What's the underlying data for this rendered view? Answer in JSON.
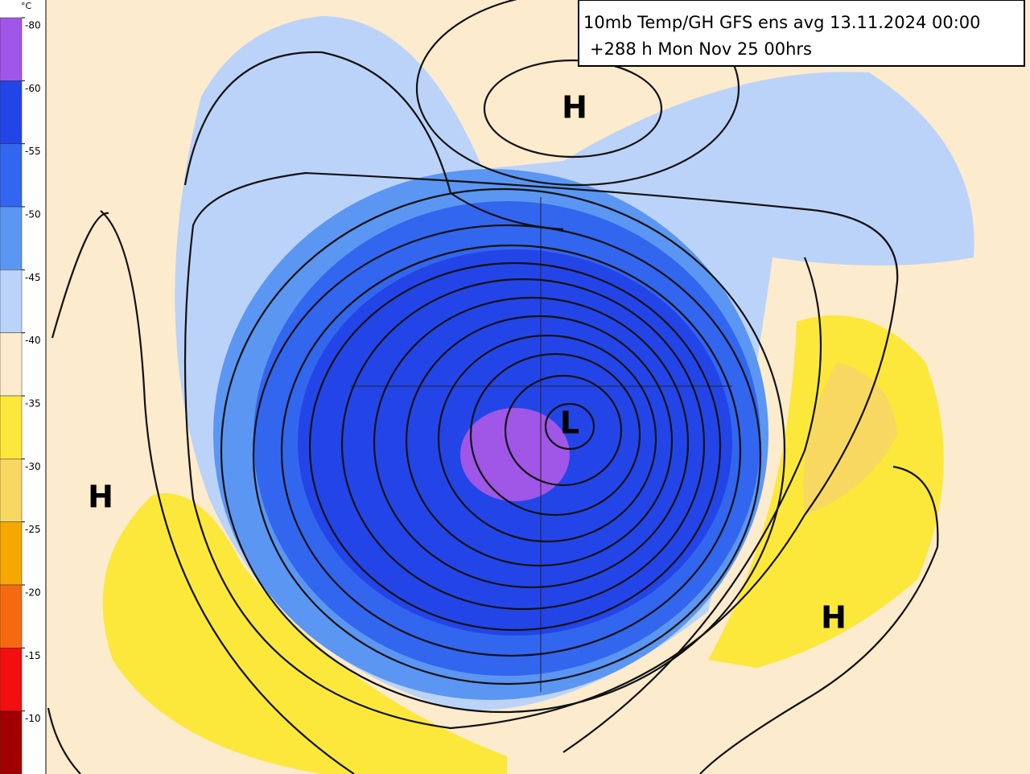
{
  "header": {
    "title_line1": "10mb Temp/GH GFS ens avg 13.11.2024 00:00",
    "title_line2": "+288 h Mon Nov 25 00hrs"
  },
  "legend": {
    "unit": "°C",
    "levels": [
      -80,
      -60,
      -55,
      -50,
      -45,
      -40,
      -35,
      -30,
      -25,
      -20,
      -15,
      -10
    ],
    "colors": [
      "#a056e6",
      "#2345e8",
      "#3366ee",
      "#5b96f2",
      "#bcd3f9",
      "#fcebcd",
      "#fbe83a",
      "#f8d860",
      "#f5a800",
      "#f56a10",
      "#f20f0f",
      "#a00000"
    ]
  },
  "map": {
    "labels": [
      {
        "text": "H"
      },
      {
        "text": "H"
      },
      {
        "text": "H"
      },
      {
        "text": "L"
      }
    ]
  }
}
